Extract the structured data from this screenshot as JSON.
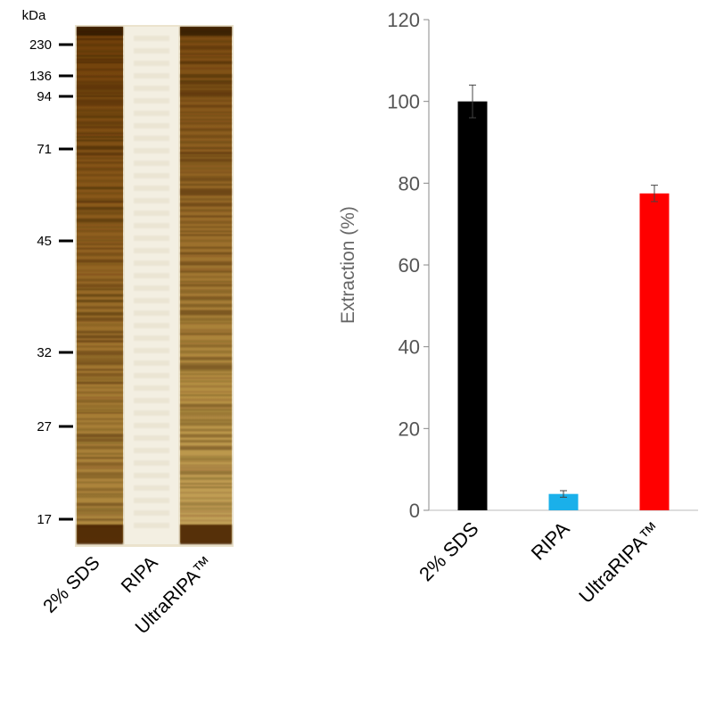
{
  "gel": {
    "unit_label": "kDa",
    "markers": [
      {
        "label": "230",
        "kda": 230
      },
      {
        "label": "136",
        "kda": 136
      },
      {
        "label": "94",
        "kda": 94
      },
      {
        "label": "71",
        "kda": 71
      },
      {
        "label": "45",
        "kda": 45
      },
      {
        "label": "32",
        "kda": 32
      },
      {
        "label": "27",
        "kda": 27
      },
      {
        "label": "17",
        "kda": 17
      }
    ],
    "lanes": [
      {
        "label": "2% SDS"
      },
      {
        "label": "RIPA"
      },
      {
        "label": "UltraRIPA™"
      }
    ],
    "colors": {
      "stain": "#7a4a10",
      "background": "#ece4cf"
    }
  },
  "chart_data": {
    "type": "bar",
    "categories": [
      "2% SDS",
      "RIPA",
      "UltraRIPA™"
    ],
    "values": [
      100,
      4,
      77.5
    ],
    "errors": [
      4,
      0.8,
      2
    ],
    "colors": [
      "#000000",
      "#1ab0ea",
      "#ff0000"
    ],
    "title": "",
    "xlabel": "",
    "ylabel": "Extraction  (%)",
    "ylim": [
      0,
      120
    ],
    "yticks": [
      0,
      20,
      40,
      60,
      80,
      100,
      120
    ],
    "grid": false
  }
}
